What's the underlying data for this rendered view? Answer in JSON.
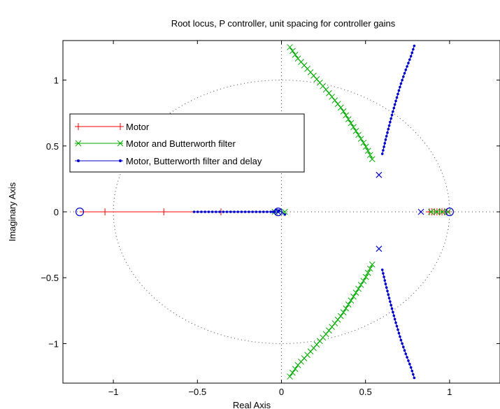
{
  "chart_data": {
    "type": "scatter",
    "title": "Root locus, P controller, unit spacing for controller gains",
    "xlabel": "Real Axis",
    "ylabel": "Imaginary Axis",
    "xlim": [
      -1.3,
      1.3
    ],
    "ylim": [
      -1.3,
      1.3
    ],
    "x_ticks": [
      -1,
      -0.5,
      0,
      0.5,
      1
    ],
    "x_tick_labels": [
      "−1",
      "−0.5",
      "0",
      "0.5",
      "1"
    ],
    "y_ticks": [
      -1,
      -0.5,
      0,
      0.5,
      1
    ],
    "y_tick_labels": [
      "−1",
      "−0.5",
      "0",
      "0.5",
      "1"
    ],
    "grid": "unit-circle and zero-axes dotted",
    "legend_position": "left",
    "series": [
      {
        "name": "Motor",
        "color": "#ff0000",
        "marker": "plus",
        "branches": [
          {
            "x": [
              -1.2,
              -1.05,
              -0.7,
              -0.36,
              -0.01
            ],
            "y": [
              0,
              0,
              0,
              0,
              0
            ],
            "markers": [
              -1.05,
              -0.7,
              -0.36
            ]
          },
          {
            "x": [
              0.87,
              0.99
            ],
            "y": [
              0,
              0
            ],
            "markers": [
              0.88,
              0.895,
              0.91,
              0.925,
              0.94,
              0.955,
              0.97,
              0.985
            ]
          }
        ]
      },
      {
        "name": "Motor and Butterworth filter",
        "color": "#00aa00",
        "marker": "x",
        "branches": [
          {
            "x": [
              0.54,
              0.5,
              0.44,
              0.36,
              0.27,
              0.18,
              0.1,
              0.05
            ],
            "y": [
              0.4,
              0.5,
              0.62,
              0.78,
              0.92,
              1.05,
              1.16,
              1.25
            ]
          },
          {
            "x": [
              0.54,
              0.5,
              0.44,
              0.36,
              0.27,
              0.18,
              0.1,
              0.05
            ],
            "y": [
              -0.4,
              -0.5,
              -0.62,
              -0.78,
              -0.92,
              -1.05,
              -1.16,
              -1.25
            ]
          },
          {
            "x": [
              0.89,
              0.99
            ],
            "y": [
              0,
              0
            ]
          },
          {
            "x": [
              -0.04,
              0.02
            ],
            "y": [
              0,
              0
            ]
          }
        ]
      },
      {
        "name": "Motor, Butterworth filter and delay",
        "color": "#0000cc",
        "marker": "dot",
        "branches": [
          {
            "x": [
              0.6,
              0.62,
              0.65,
              0.68,
              0.71,
              0.74,
              0.77,
              0.79
            ],
            "y": [
              0.44,
              0.55,
              0.7,
              0.84,
              0.97,
              1.08,
              1.18,
              1.26
            ]
          },
          {
            "x": [
              0.6,
              0.62,
              0.65,
              0.68,
              0.71,
              0.74,
              0.77,
              0.79
            ],
            "y": [
              -0.44,
              -0.55,
              -0.7,
              -0.84,
              -0.97,
              -1.08,
              -1.18,
              -1.26
            ]
          },
          {
            "x": [
              -0.52,
              -0.36,
              -0.2,
              -0.1,
              -0.05,
              -0.02
            ],
            "y": [
              0,
              0,
              0,
              0,
              0,
              0
            ]
          },
          {
            "x": [
              -0.05,
              -0.03,
              0.0,
              0.02
            ],
            "y": [
              0,
              0.02,
              0.0,
              -0.02
            ]
          }
        ]
      }
    ],
    "poles": [
      {
        "x": 0.58,
        "y": 0.28
      },
      {
        "x": 0.58,
        "y": -0.28
      },
      {
        "x": 0.83,
        "y": 0
      },
      {
        "x": -0.02,
        "y": 0
      }
    ],
    "zeros": [
      {
        "x": -1.2,
        "y": 0
      },
      {
        "x": 1.0,
        "y": 0
      },
      {
        "x": -0.02,
        "y": 0
      }
    ]
  }
}
